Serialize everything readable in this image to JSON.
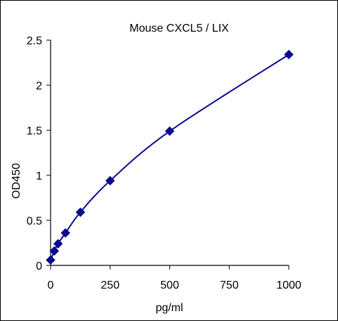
{
  "chart_data": {
    "type": "scatter",
    "title": "Mouse CXCL5 / LIX",
    "xlabel": "pg/ml",
    "ylabel": "OD450",
    "xlim": [
      0,
      1000
    ],
    "ylim": [
      0,
      2.5
    ],
    "x_ticks": [
      0,
      250,
      500,
      750,
      1000
    ],
    "y_ticks": [
      0,
      0.5,
      1,
      1.5,
      2,
      2.5
    ],
    "x_tick_labels": [
      "0",
      "250",
      "500",
      "750",
      "1000"
    ],
    "y_tick_labels": [
      "0",
      "0.5",
      "1",
      "1.5",
      "2",
      "2.5"
    ],
    "grid": false,
    "marker": "diamond",
    "trendline": "smooth curve through points",
    "color": "#0a0a8c",
    "series": [
      {
        "x": [
          0,
          15.6,
          31.25,
          62.5,
          125,
          250,
          500,
          1000
        ],
        "y": [
          0.06,
          0.16,
          0.24,
          0.36,
          0.59,
          0.94,
          1.49,
          2.34
        ]
      }
    ]
  }
}
